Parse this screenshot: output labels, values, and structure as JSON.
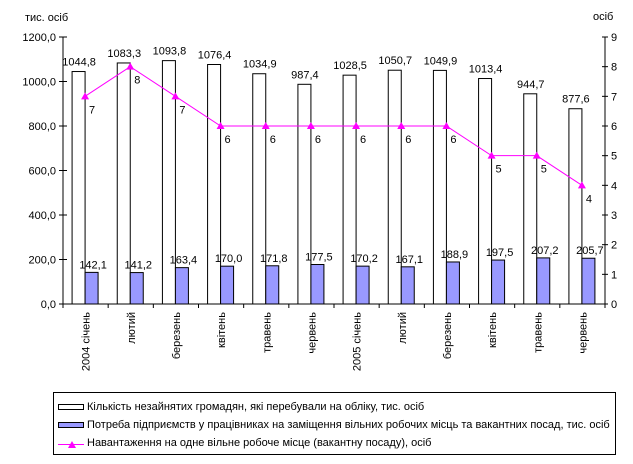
{
  "chart_data": {
    "type": "bar",
    "title": "",
    "xlabel": "",
    "ylabel": "тис. осіб",
    "y2label": "осіб",
    "ylim": [
      0,
      1200
    ],
    "y2lim": [
      0,
      9
    ],
    "yticks": [
      "0,0",
      "200,0",
      "400,0",
      "600,0",
      "800,0",
      "1000,0",
      "1200,0"
    ],
    "y2ticks": [
      "0",
      "1",
      "2",
      "3",
      "4",
      "5",
      "6",
      "7",
      "8",
      "9"
    ],
    "grid": false,
    "legend_position": "bottom",
    "categories": [
      "2004 січень",
      "лютий",
      "березень",
      "квітень",
      "травень",
      "червень",
      "2005 січень",
      "лютий",
      "березень",
      "квітень",
      "травень",
      "червень"
    ],
    "series": [
      {
        "name": "Кількість незайнятих громадян, які перебували на обліку, тис. осіб",
        "kind": "bar",
        "axis": "left",
        "color": "#ffffff",
        "values": [
          1044.8,
          1083.3,
          1093.8,
          1076.4,
          1034.9,
          987.4,
          1028.5,
          1050.7,
          1049.9,
          1013.4,
          944.7,
          877.6
        ],
        "labels": [
          "1044,8",
          "1083,3",
          "1093,8",
          "1076,4",
          "1034,9",
          "987,4",
          "1028,5",
          "1050,7",
          "1049,9",
          "1013,4",
          "944,7",
          "877,6"
        ]
      },
      {
        "name": "Потреба підприємств у працівниках на заміщення вільних робочих місць та вакантних посад, тис. осіб",
        "kind": "bar",
        "axis": "left",
        "color": "#9999ff",
        "values": [
          142.1,
          141.2,
          163.4,
          170.0,
          171.8,
          177.5,
          170.2,
          167.1,
          188.9,
          197.5,
          207.2,
          205.7
        ],
        "labels": [
          "142,1",
          "141,2",
          "163,4",
          "170,0",
          "171,8",
          "177,5",
          "170,2",
          "167,1",
          "188,9",
          "197,5",
          "207,2",
          "205,7"
        ]
      },
      {
        "name": "Навантаження на одне вільне робоче місце (вакантну посаду), осіб",
        "kind": "line",
        "axis": "right",
        "color": "#ff00ff",
        "marker": "triangle",
        "values": [
          7,
          8,
          7,
          6,
          6,
          6,
          6,
          6,
          6,
          5,
          5,
          4
        ],
        "labels": [
          "7",
          "8",
          "7",
          "6",
          "6",
          "6",
          "6",
          "6",
          "6",
          "5",
          "5",
          "4"
        ]
      }
    ]
  },
  "legend": {
    "items": [
      {
        "label": "Кількість незайнятих громадян, які перебували на обліку, тис. осіб"
      },
      {
        "label": "Потреба підприємств у працівниках на заміщення вільних робочих місць та вакантних посад, тис. осіб"
      },
      {
        "label": "Навантаження на одне вільне робоче місце (вакантну посаду), осіб"
      }
    ]
  }
}
